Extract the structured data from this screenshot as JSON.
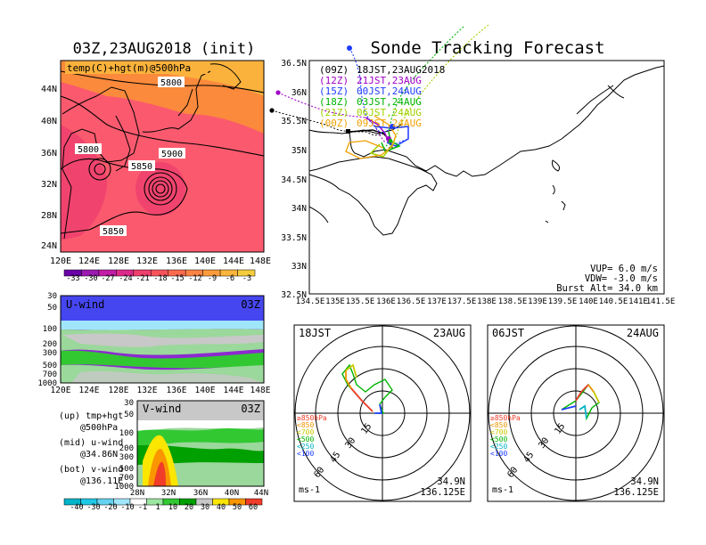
{
  "main_title": "Sonde Tracking Forecast",
  "left_title": "03Z,23AUG2018 (init)",
  "map500": {
    "label": "temp(C)+hgt(m)@500hPa",
    "contours": [
      "5800",
      "5800",
      "5850",
      "5900",
      "5850"
    ],
    "lat_ticks": [
      "44N",
      "40N",
      "36N",
      "32N",
      "28N",
      "24N"
    ],
    "lon_ticks": [
      "120E",
      "124E",
      "128E",
      "132E",
      "136E",
      "140E",
      "144E",
      "148E"
    ],
    "colorbar_ticks": [
      "-33",
      "-30",
      "-27",
      "-24",
      "-21",
      "-18",
      "-15",
      "-12",
      "-9",
      "-6",
      "-3"
    ],
    "colors": [
      "#6a00a8",
      "#9b1bb0",
      "#c21ca8",
      "#dd2a8a",
      "#ee3f6d",
      "#f7545a",
      "#fb6a4e",
      "#fd8344",
      "#fe9c3d",
      "#fbb53a",
      "#f5cc3d"
    ]
  },
  "uwind": {
    "label": "U-wind",
    "time": "03Z",
    "y_ticks": [
      "30",
      "50",
      "100",
      "200",
      "300",
      "500",
      "700",
      "1000"
    ],
    "x_ticks": [
      "120E",
      "124E",
      "128E",
      "132E",
      "136E",
      "140E",
      "144E",
      "148E"
    ]
  },
  "vwind": {
    "label": "V-wind",
    "time": "03Z",
    "y_ticks": [
      "30",
      "50",
      "100",
      "200",
      "300",
      "500",
      "700",
      "1000"
    ],
    "x_ticks": [
      "28N",
      "32N",
      "36N",
      "40N",
      "44N"
    ],
    "colorbar_ticks": [
      "-40",
      "-30",
      "-20",
      "-10",
      "-1",
      "1",
      "10",
      "20",
      "30",
      "40",
      "50",
      "60"
    ],
    "colors": [
      "#00b4c8",
      "#1ec8e6",
      "#64d2f0",
      "#a0e6fa",
      "#ffffff",
      "#9be6a0",
      "#32c832",
      "#00a000",
      "#c8c8c8",
      "#fae600",
      "#fa9600",
      "#f03c28"
    ]
  },
  "legend_notes": [
    {
      "a": "(up) tmp+hgt",
      "b": "@500hPa"
    },
    {
      "a": "(mid) u-wind",
      "b": "@34.86N"
    },
    {
      "a": "(bot) v-wind",
      "b": "@136.11E"
    }
  ],
  "track_map": {
    "lat_ticks": [
      "36.5N",
      "36N",
      "35.5N",
      "35N",
      "34.5N",
      "34N",
      "33.5N",
      "33N",
      "32.5N"
    ],
    "lon_ticks": [
      "134.5E",
      "135E",
      "135.5E",
      "136E",
      "136.5E",
      "137E",
      "137.5E",
      "138E",
      "138.5E",
      "139E",
      "139.5E",
      "140E",
      "140.5E",
      "141E",
      "141.5E"
    ],
    "launches": [
      {
        "label": "(09Z)",
        "time": "18JST,23AUG2018",
        "color": "#000000"
      },
      {
        "label": "(12Z)",
        "time": "21JST,23AUG",
        "color": "#a000c8"
      },
      {
        "label": "(15Z)",
        "time": "00JST,24AUG",
        "color": "#1e3cff"
      },
      {
        "label": "(18Z)",
        "time": "03JST,24AUG",
        "color": "#00b400"
      },
      {
        "label": "(21Z)",
        "time": "06JST,24AUG",
        "color": "#a0d200"
      },
      {
        "label": "(00Z)",
        "time": "09JST,24AUG",
        "color": "#f0a000"
      }
    ],
    "vup": "VUP=  6.0 m/s",
    "vdw": "VDW= -3.0 m/s",
    "burst": "Burst Alt= 34.0 km"
  },
  "hodo_left": {
    "time": "18JST",
    "date": "23AUG",
    "lat": "34.9N",
    "lon": "136.125E",
    "unit": "ms-1",
    "rings": [
      "15",
      "30",
      "45",
      "60"
    ]
  },
  "hodo_right": {
    "time": "06JST",
    "date": "24AUG",
    "lat": "34.9N",
    "lon": "136.125E",
    "unit": "ms-1",
    "rings": [
      "15",
      "30",
      "45",
      "60"
    ]
  },
  "hodo_legend": [
    {
      "label": "≥850hPa",
      "color": "#f03c28"
    },
    {
      "label": "<850",
      "color": "#f09600"
    },
    {
      "label": "<700",
      "color": "#c8c800"
    },
    {
      "label": "<500",
      "color": "#00b400"
    },
    {
      "label": "<250",
      "color": "#00b4c8"
    },
    {
      "label": "<100",
      "color": "#1e3cff"
    }
  ]
}
